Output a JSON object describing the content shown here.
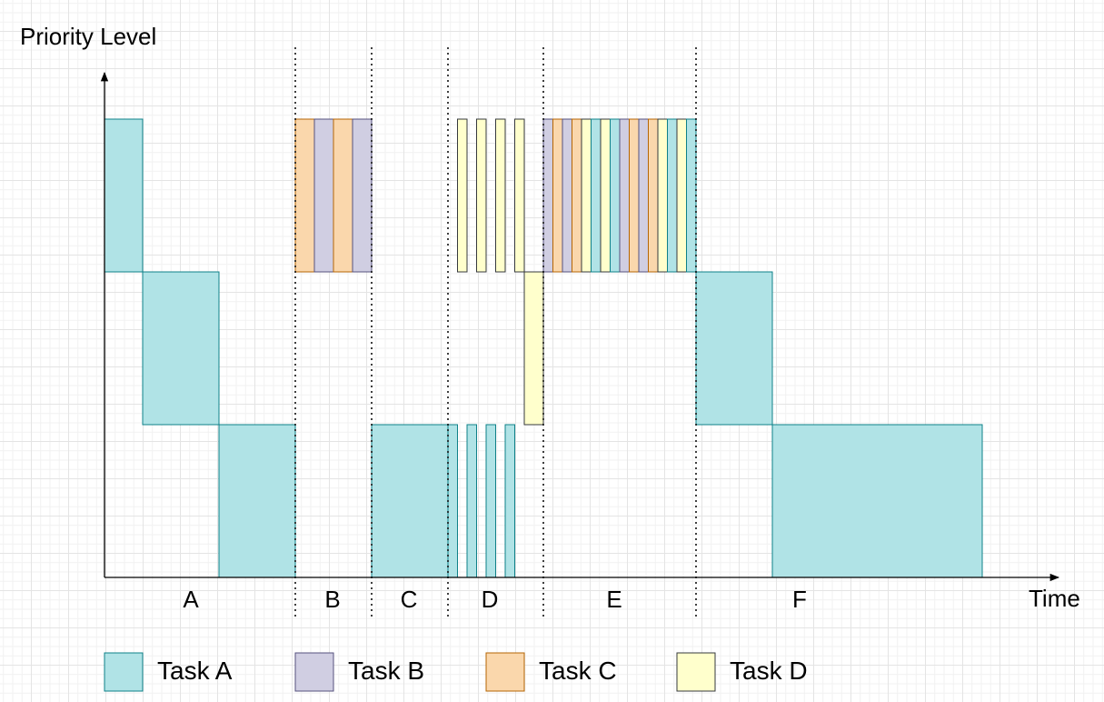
{
  "axes": {
    "y_label": "Priority Level",
    "x_label": "Time"
  },
  "priority_levels": [
    1,
    2,
    3,
    4
  ],
  "phases": [
    "A",
    "B",
    "C",
    "D",
    "E",
    "F"
  ],
  "colors": {
    "axis": "#000000",
    "divider": "#000000",
    "Task A": {
      "fill": "#b0e3e6",
      "stroke": "#0e8088"
    },
    "Task B": {
      "fill": "#d0cee2",
      "stroke": "#56517e"
    },
    "Task C": {
      "fill": "#fad7ac",
      "stroke": "#b46504"
    },
    "Task D": {
      "fill": "#ffffcc",
      "stroke": "#36393d"
    }
  },
  "legend": [
    {
      "task": "Task A",
      "label": "Task A"
    },
    {
      "task": "Task B",
      "label": "Task B"
    },
    {
      "task": "Task C",
      "label": "Task C"
    },
    {
      "task": "Task D",
      "label": "Task D"
    }
  ],
  "schedule": {
    "A": [
      {
        "task": "Task A",
        "level": 4,
        "duration": 1
      },
      {
        "task": "Task A",
        "level": 3,
        "duration": 2
      },
      {
        "task": "Task A",
        "level": 2,
        "duration": 2
      }
    ],
    "B": [
      {
        "task": "Task C",
        "level": 4,
        "duration": 0.5
      },
      {
        "task": "Task B",
        "level": 4,
        "duration": 0.5
      },
      {
        "task": "Task C",
        "level": 4,
        "duration": 0.5
      },
      {
        "task": "Task B",
        "level": 4,
        "duration": 0.5
      }
    ],
    "C": [
      {
        "task": "Task A",
        "level": 2,
        "duration": 2
      }
    ],
    "D": [
      {
        "task": "Task A",
        "level": 2,
        "duration": 0.25
      },
      {
        "task": "Task D",
        "level": 4,
        "duration": 0.25
      },
      {
        "task": "Task A",
        "level": 2,
        "duration": 0.25
      },
      {
        "task": "Task D",
        "level": 4,
        "duration": 0.25
      },
      {
        "task": "Task A",
        "level": 2,
        "duration": 0.25
      },
      {
        "task": "Task D",
        "level": 4,
        "duration": 0.25
      },
      {
        "task": "Task A",
        "level": 2,
        "duration": 0.25
      },
      {
        "task": "Task D",
        "level": 4,
        "duration": 0.25
      },
      {
        "task": "Task D",
        "level": 3,
        "duration": 0.5
      }
    ],
    "E": [
      {
        "task": "Task B",
        "level": 4,
        "duration": 0.25
      },
      {
        "task": "Task C",
        "level": 4,
        "duration": 0.25
      },
      {
        "task": "Task B",
        "level": 4,
        "duration": 0.25
      },
      {
        "task": "Task C",
        "level": 4,
        "duration": 0.25
      },
      {
        "task": "Task D",
        "level": 4,
        "duration": 0.25
      },
      {
        "task": "Task A",
        "level": 4,
        "duration": 0.25
      },
      {
        "task": "Task D",
        "level": 4,
        "duration": 0.25
      },
      {
        "task": "Task A",
        "level": 4,
        "duration": 0.25
      },
      {
        "task": "Task B",
        "level": 4,
        "duration": 0.25
      },
      {
        "task": "Task C",
        "level": 4,
        "duration": 0.25
      },
      {
        "task": "Task B",
        "level": 4,
        "duration": 0.25
      },
      {
        "task": "Task C",
        "level": 4,
        "duration": 0.25
      },
      {
        "task": "Task D",
        "level": 4,
        "duration": 0.25
      },
      {
        "task": "Task A",
        "level": 4,
        "duration": 0.25
      },
      {
        "task": "Task D",
        "level": 4,
        "duration": 0.25
      },
      {
        "task": "Task A",
        "level": 4,
        "duration": 0.25
      }
    ],
    "F": [
      {
        "task": "Task A",
        "level": 3,
        "duration": 2
      },
      {
        "task": "Task A",
        "level": 2,
        "duration": 5.5
      }
    ]
  }
}
